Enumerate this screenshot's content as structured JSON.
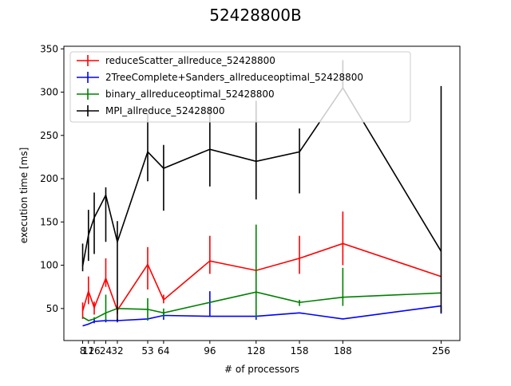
{
  "chart_data": {
    "type": "line",
    "title": "52428800B",
    "xlabel": "# of processors",
    "ylabel": "execution time [ms]",
    "xlim": [
      -5,
      269
    ],
    "ylim": [
      13,
      353
    ],
    "x_ticks": [
      8,
      12,
      16,
      24,
      32,
      53,
      64,
      96,
      128,
      158,
      188,
      256
    ],
    "x_tick_labels": [
      "8",
      "12",
      "16",
      "24",
      "32",
      "53",
      "64",
      "96",
      "128",
      "158",
      "188",
      "256"
    ],
    "y_ticks": [
      50,
      100,
      150,
      200,
      250,
      300,
      350
    ],
    "grid": false,
    "legend_position": "top-left",
    "series": [
      {
        "name": "reduceScatter_allreduce_52428800",
        "color": "#ff0000",
        "x": [
          8,
          12,
          16,
          24,
          32,
          53,
          64,
          96,
          128,
          158,
          188,
          256
        ],
        "y": [
          47,
          70,
          51,
          85,
          48,
          101,
          60,
          105,
          94,
          108,
          125,
          87
        ],
        "err_low": [
          38,
          55,
          43,
          75,
          44,
          72,
          56,
          90,
          90,
          90,
          100,
          87
        ],
        "err_high": [
          57,
          87,
          58,
          108,
          52,
          121,
          66,
          134,
          98,
          134,
          162,
          87
        ]
      },
      {
        "name": "2TreeComplete+Sanders_allreduceoptimal_52428800",
        "color": "#0000ff",
        "x": [
          8,
          12,
          16,
          24,
          32,
          53,
          64,
          96,
          128,
          158,
          188,
          256
        ],
        "y": [
          30,
          32,
          35,
          36,
          36,
          38,
          42,
          41,
          41,
          45,
          38,
          53
        ],
        "err_low": [
          30,
          32,
          33,
          34,
          34,
          38,
          37,
          41,
          37,
          45,
          38,
          44
        ],
        "err_high": [
          30,
          32,
          38,
          38,
          38,
          38,
          45,
          70,
          45,
          45,
          38,
          53
        ]
      },
      {
        "name": "binary_allreduceoptimal_52428800",
        "color": "#008000",
        "x": [
          8,
          12,
          16,
          24,
          32,
          53,
          64,
          96,
          128,
          158,
          188,
          256
        ],
        "y": [
          40,
          36,
          38,
          45,
          50,
          49,
          45,
          57,
          69,
          57,
          63,
          68
        ],
        "err_low": [
          40,
          36,
          37,
          36,
          50,
          36,
          40,
          57,
          40,
          53,
          53,
          68
        ],
        "err_high": [
          40,
          36,
          40,
          66,
          50,
          62,
          50,
          57,
          147,
          60,
          97,
          68
        ]
      },
      {
        "name": "MPI_allreduce_52428800",
        "color": "#000000",
        "x": [
          8,
          12,
          16,
          24,
          32,
          53,
          64,
          96,
          128,
          158,
          188,
          256
        ],
        "y": [
          99,
          135,
          155,
          181,
          127,
          231,
          212,
          234,
          220,
          231,
          305,
          116
        ],
        "err_low": [
          93,
          105,
          113,
          127,
          36,
          197,
          163,
          191,
          176,
          183,
          305,
          45
        ],
        "err_high": [
          125,
          164,
          184,
          190,
          151,
          275,
          239,
          283,
          290,
          258,
          337,
          307
        ]
      }
    ]
  }
}
